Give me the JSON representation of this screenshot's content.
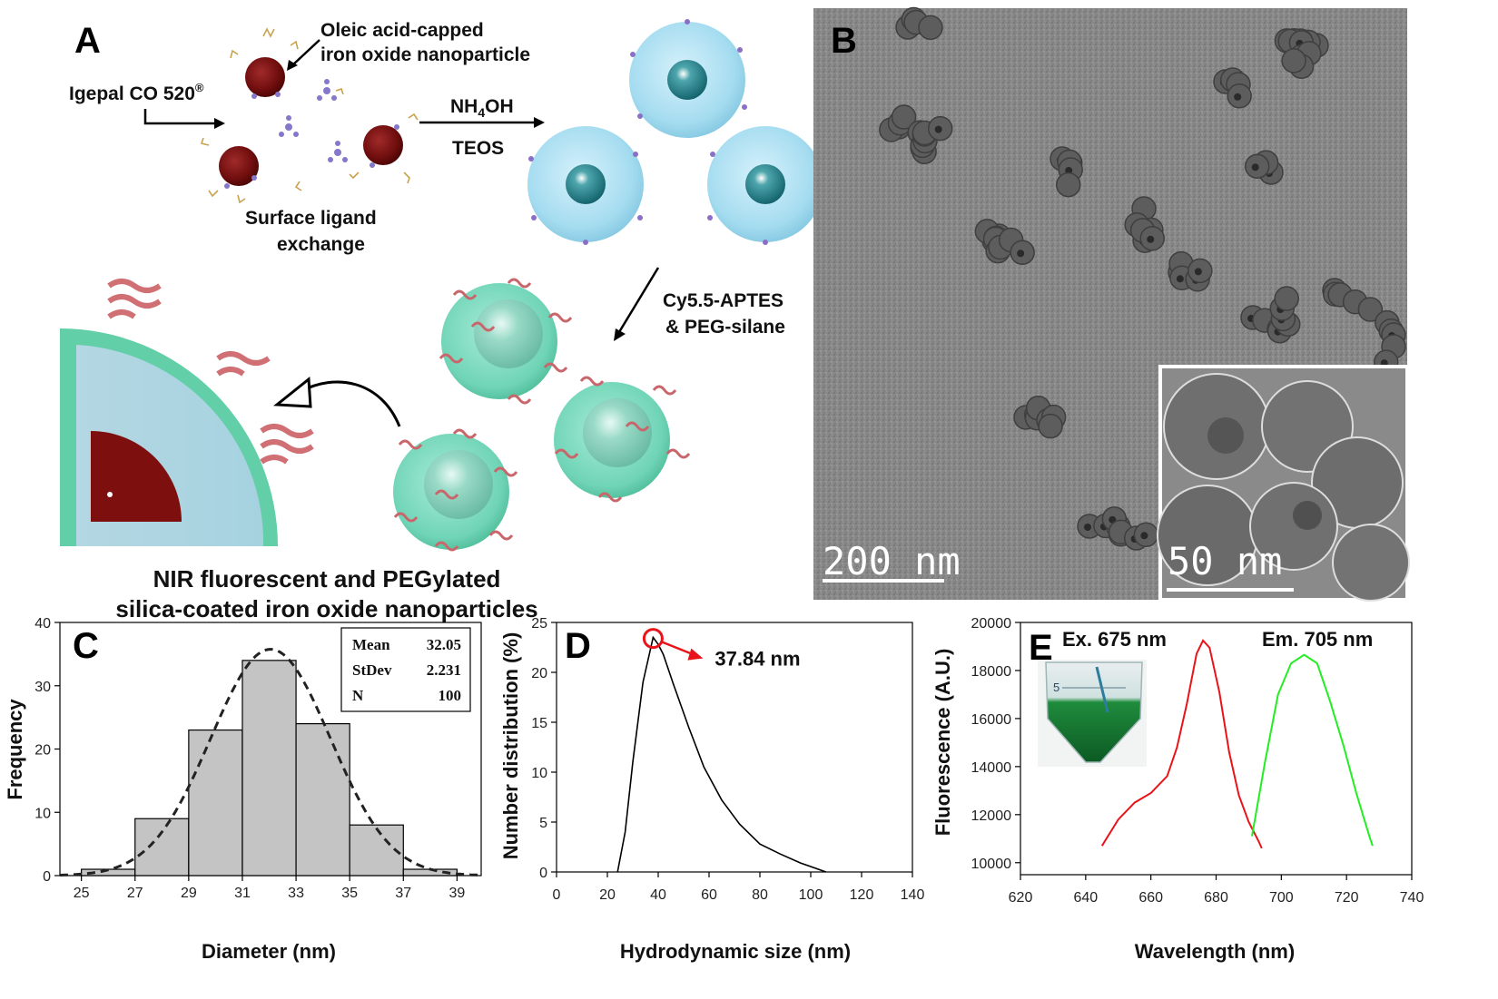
{
  "panel_a": {
    "letter": "A",
    "label_oleic": [
      "Oleic acid-capped",
      "iron oxide nanoparticle"
    ],
    "label_igepal": "Igepal CO 520",
    "label_igepal_sup": "®",
    "label_nh4oh_main": "NH",
    "label_nh4oh_sub": "4",
    "label_nh4oh_end": "OH",
    "label_teos": "TEOS",
    "label_ligand": [
      "Surface ligand",
      "exchange"
    ],
    "label_cy55": [
      "Cy5.5-APTES",
      "& PEG-silane"
    ],
    "caption": [
      "NIR fluorescent and PEGylated",
      "silica-coated iron oxide nanoparticles"
    ]
  },
  "panel_b": {
    "letter": "B",
    "scalebar_main": "200 nm",
    "scalebar_inset": "50 nm"
  },
  "chart_data": [
    {
      "panel": "C",
      "type": "bar",
      "xlabel": "Diameter (nm)",
      "ylabel": "Frequency",
      "bins": [
        [
          25,
          27
        ],
        [
          27,
          29
        ],
        [
          29,
          31
        ],
        [
          31,
          33
        ],
        [
          33,
          35
        ],
        [
          35,
          37
        ],
        [
          37,
          39
        ]
      ],
      "values": [
        1,
        9,
        23,
        34,
        24,
        8,
        1
      ],
      "xticks": [
        25,
        27,
        29,
        31,
        33,
        35,
        37,
        39
      ],
      "yticks": [
        0,
        10,
        20,
        30,
        40
      ],
      "xlim": [
        24.2,
        39.9
      ],
      "ylim": [
        0,
        40
      ],
      "fit": "normal",
      "fit_mean": 32.05,
      "fit_sd": 2.231,
      "stats": [
        {
          "label": "Mean",
          "value": "32.05"
        },
        {
          "label": "StDev",
          "value": "2.231"
        },
        {
          "label": "N",
          "value": "100"
        }
      ],
      "colors": {
        "bar": "#c4c4c4",
        "fit": "#222222"
      }
    },
    {
      "panel": "D",
      "type": "line",
      "xlabel": "Hydrodynamic size (nm)",
      "ylabel": "Number distribution (%)",
      "x": [
        24,
        27,
        30,
        34,
        38,
        40,
        42,
        46,
        52,
        58,
        65,
        72,
        80,
        88,
        96,
        106
      ],
      "y": [
        0,
        4,
        11,
        19,
        23.5,
        22.8,
        21.8,
        18.8,
        14.5,
        10.5,
        7.2,
        4.8,
        2.8,
        1.8,
        0.9,
        0
      ],
      "xticks": [
        0,
        20,
        40,
        60,
        80,
        100,
        120,
        140
      ],
      "yticks": [
        0,
        5,
        10,
        15,
        20,
        25
      ],
      "xlim": [
        0,
        140
      ],
      "ylim": [
        0,
        25
      ],
      "peak": {
        "x": 38,
        "y": 23.4,
        "label": "37.84 nm"
      },
      "colors": {
        "line": "#000000",
        "marker": "#e8141a"
      }
    },
    {
      "panel": "E",
      "type": "line",
      "xlabel": "Wavelength (nm)",
      "ylabel": "Fluorescence (A.U.)",
      "xticks": [
        620,
        640,
        660,
        680,
        700,
        720,
        740
      ],
      "yticks": [
        10000,
        12000,
        14000,
        16000,
        18000,
        20000
      ],
      "xlim": [
        620,
        740
      ],
      "ylim": [
        9500,
        20000
      ],
      "series": [
        {
          "name": "Ex. 675 nm",
          "color": "#e8141a",
          "x": [
            645,
            650,
            655,
            660,
            665,
            668,
            671,
            674,
            676,
            678,
            681,
            684,
            687,
            690,
            693,
            694
          ],
          "y": [
            10700,
            11800,
            12500,
            12900,
            13600,
            14800,
            16600,
            18700,
            19250,
            18950,
            17100,
            14600,
            12800,
            11700,
            10900,
            10600
          ]
        },
        {
          "name": "Em. 705 nm",
          "color": "#22ee22",
          "x": [
            691,
            695,
            699,
            703,
            707,
            711,
            715,
            719,
            723,
            727,
            728
          ],
          "y": [
            11100,
            14200,
            17000,
            18300,
            18650,
            18300,
            16700,
            14900,
            12900,
            11100,
            10700
          ]
        }
      ]
    }
  ]
}
